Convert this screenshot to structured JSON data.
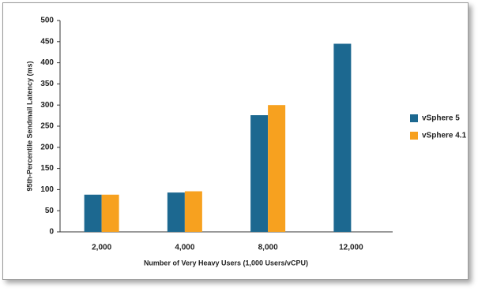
{
  "chart_data": {
    "type": "bar",
    "x_label": "Number of Very Heavy Users (1,000 Users/vCPU)",
    "y_label": "95th-Percentile Sendmail Latency (ms)",
    "categories": [
      "2,000",
      "4,000",
      "8,000",
      "12,000"
    ],
    "series": [
      {
        "name": "vSphere 5",
        "color": "#1c6890",
        "values": [
          88,
          93,
          276,
          445
        ]
      },
      {
        "name": "vSphere 4.1",
        "color": "#f7a11f",
        "values": [
          88,
          96,
          300,
          null
        ]
      }
    ],
    "ylim": [
      0,
      500
    ],
    "yticks": [
      0,
      50,
      100,
      150,
      200,
      250,
      300,
      350,
      400,
      450,
      500
    ],
    "grid": false,
    "legend": "right"
  }
}
